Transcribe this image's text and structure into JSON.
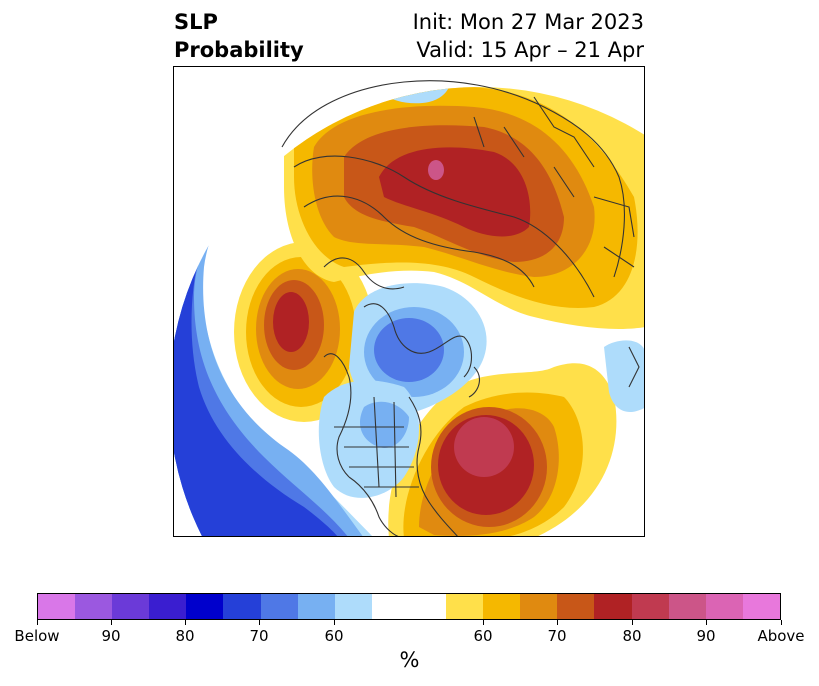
{
  "title": {
    "left_line1": "SLP",
    "left_line2": "Probability",
    "right_line1": "Init: Mon 27 Mar 2023",
    "right_line2": "Valid: 15 Apr – 21 Apr"
  },
  "colorbar": {
    "colors": [
      "#d977e8",
      "#9b58e0",
      "#6b3ad8",
      "#3a1ed0",
      "#0000cc",
      "#2540d8",
      "#4f78e6",
      "#77b0f2",
      "#aedcfb",
      "#ffffff",
      "#ffffff",
      "#ffe04a",
      "#f5b800",
      "#e08a10",
      "#c85718",
      "#b02224",
      "#c03a50",
      "#cc5588",
      "#db64b4",
      "#e878dc"
    ],
    "tick_labels": [
      "Below",
      "90",
      "80",
      "70",
      "60",
      "60",
      "70",
      "80",
      "90",
      "Above"
    ],
    "unit_label": "%"
  },
  "palette": {
    "below_weak": "#aedcfb",
    "below_mid": "#77b0f2",
    "below_strong": "#4f78e6",
    "below_stronger": "#2540d8",
    "above_weak": "#ffe04a",
    "above_mid": "#f5b800",
    "above_strong": "#e08a10",
    "above_stronger": "#c85718",
    "above_max": "#b02224",
    "above_peak": "#c03a50",
    "above_top": "#cc5588",
    "coast": "#333333"
  }
}
